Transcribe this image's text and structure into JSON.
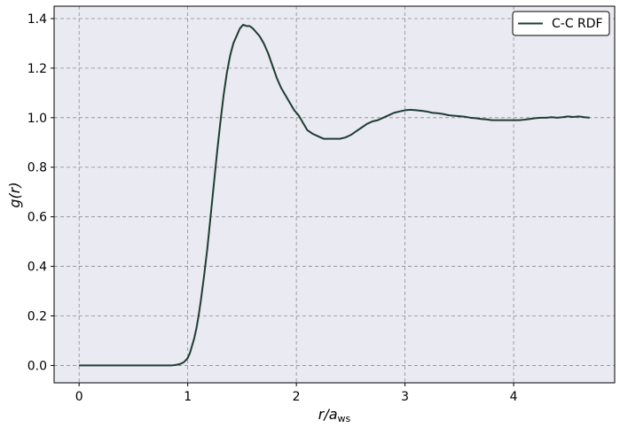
{
  "chart_data": {
    "type": "line",
    "xlabel_main": "r/a",
    "xlabel_sub": "ws",
    "ylabel_main": "g(r)",
    "xlim": [
      -0.23,
      4.93
    ],
    "ylim": [
      -0.07,
      1.45
    ],
    "xticks": [
      0,
      1,
      2,
      3,
      4
    ],
    "yticks": [
      0.0,
      0.2,
      0.4,
      0.6,
      0.8,
      1.0,
      1.2,
      1.4
    ],
    "xtick_labels": [
      "0",
      "1",
      "2",
      "3",
      "4"
    ],
    "ytick_labels": [
      "0.0",
      "0.2",
      "0.4",
      "0.6",
      "0.8",
      "1.0",
      "1.2",
      "1.4"
    ],
    "grid": true,
    "legend_position": "top-right",
    "colors": {
      "line": "#1e3d32",
      "background": "#eaeaf2",
      "grid": "#8c8c8c"
    },
    "series": [
      {
        "name": "C-C RDF",
        "x": [
          0.0,
          0.1,
          0.2,
          0.3,
          0.4,
          0.5,
          0.6,
          0.7,
          0.8,
          0.85,
          0.9,
          0.93,
          0.96,
          0.98,
          1.0,
          1.02,
          1.04,
          1.06,
          1.08,
          1.1,
          1.12,
          1.15,
          1.18,
          1.21,
          1.24,
          1.27,
          1.3,
          1.33,
          1.36,
          1.39,
          1.42,
          1.45,
          1.48,
          1.51,
          1.54,
          1.57,
          1.6,
          1.63,
          1.66,
          1.7,
          1.74,
          1.78,
          1.82,
          1.86,
          1.9,
          1.94,
          1.98,
          2.02,
          2.06,
          2.1,
          2.15,
          2.2,
          2.25,
          2.3,
          2.35,
          2.4,
          2.45,
          2.5,
          2.55,
          2.6,
          2.65,
          2.7,
          2.75,
          2.8,
          2.85,
          2.9,
          2.95,
          3.0,
          3.05,
          3.1,
          3.15,
          3.2,
          3.25,
          3.3,
          3.35,
          3.4,
          3.45,
          3.5,
          3.55,
          3.6,
          3.65,
          3.7,
          3.75,
          3.8,
          3.85,
          3.9,
          3.95,
          4.0,
          4.05,
          4.1,
          4.15,
          4.2,
          4.25,
          4.3,
          4.35,
          4.4,
          4.45,
          4.5,
          4.55,
          4.6,
          4.65,
          4.7
        ],
        "values": [
          0.0,
          0.0,
          0.0,
          0.0,
          0.0,
          0.0,
          0.0,
          0.0,
          0.0,
          0.0,
          0.003,
          0.006,
          0.012,
          0.02,
          0.03,
          0.05,
          0.08,
          0.11,
          0.15,
          0.2,
          0.26,
          0.36,
          0.47,
          0.6,
          0.73,
          0.86,
          0.98,
          1.09,
          1.18,
          1.25,
          1.3,
          1.33,
          1.36,
          1.375,
          1.37,
          1.37,
          1.36,
          1.345,
          1.33,
          1.3,
          1.26,
          1.21,
          1.16,
          1.12,
          1.09,
          1.06,
          1.03,
          1.01,
          0.98,
          0.95,
          0.935,
          0.925,
          0.915,
          0.915,
          0.915,
          0.915,
          0.92,
          0.93,
          0.945,
          0.96,
          0.975,
          0.985,
          0.99,
          1.0,
          1.01,
          1.02,
          1.025,
          1.03,
          1.032,
          1.03,
          1.028,
          1.025,
          1.02,
          1.018,
          1.015,
          1.01,
          1.008,
          1.006,
          1.004,
          1.0,
          0.998,
          0.995,
          0.993,
          0.99,
          0.99,
          0.99,
          0.99,
          0.99,
          0.99,
          0.992,
          0.995,
          0.998,
          1.0,
          1.0,
          1.002,
          1.0,
          1.002,
          1.005,
          1.003,
          1.005,
          1.002,
          1.0
        ]
      }
    ]
  }
}
